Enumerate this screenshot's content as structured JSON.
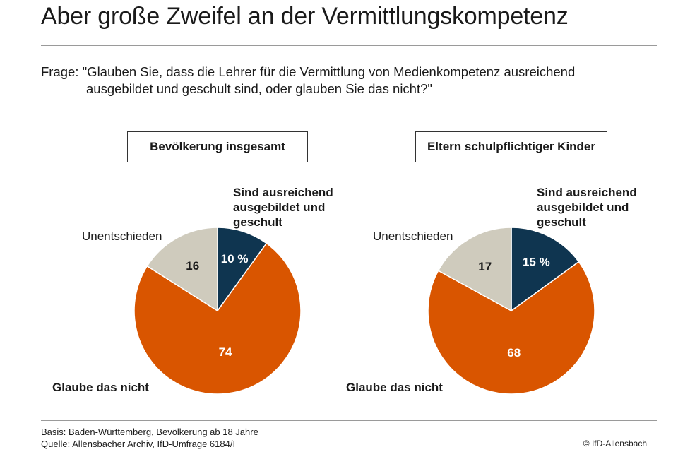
{
  "title": "Aber große Zweifel an der Vermittlungskompetenz",
  "question": {
    "prefix": "Frage:",
    "line1": "\"Glauben Sie, dass die Lehrer für die Vermittlung von Medienkompetenz ausreichend",
    "line2": "ausgebildet und geschult sind, oder glauben Sie das nicht?\""
  },
  "colors": {
    "ausreichend": "#0f3550",
    "nicht": "#d95500",
    "unentschieden": "#cfcbbd"
  },
  "chart_data": [
    {
      "type": "pie",
      "title": "Bevölkerung insgesamt",
      "unit": "%",
      "slices": [
        {
          "name": "Sind ausreichend ausgebildet und geschult",
          "value": 10,
          "label": "10 %"
        },
        {
          "name": "Glaube das nicht",
          "value": 74,
          "label": "74"
        },
        {
          "name": "Unentschieden",
          "value": 16,
          "label": "16"
        }
      ]
    },
    {
      "type": "pie",
      "title": "Eltern schulpflichtiger Kinder",
      "unit": "%",
      "slices": [
        {
          "name": "Sind ausreichend ausgebildet und geschult",
          "value": 15,
          "label": "15 %"
        },
        {
          "name": "Glaube das nicht",
          "value": 68,
          "label": "68"
        },
        {
          "name": "Unentschieden",
          "value": 17,
          "label": "17"
        }
      ]
    }
  ],
  "labels": {
    "ausreichend": [
      "Sind ausreichend",
      "ausgebildet und",
      "geschult"
    ],
    "nicht": "Glaube das nicht",
    "unentschieden": "Unentschieden"
  },
  "footer": {
    "basis": "Basis: Baden-Württemberg, Bevölkerung ab 18 Jahre",
    "quelle": "Quelle: Allensbacher Archiv, IfD-Umfrage 6184/I",
    "credit": "© IfD-Allensbach"
  }
}
